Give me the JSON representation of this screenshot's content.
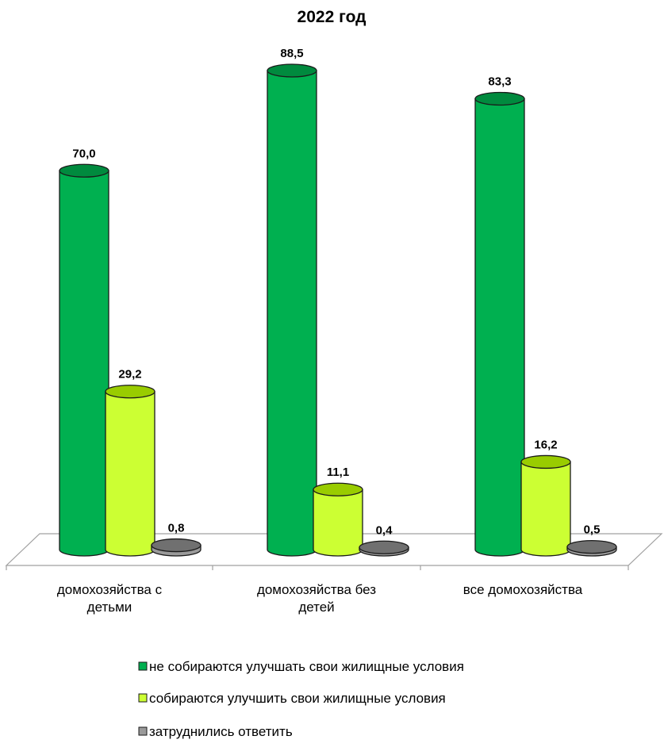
{
  "chart_data": {
    "type": "bar",
    "title": "2022 год",
    "categories": [
      [
        "домохозяйства с",
        "детьми"
      ],
      [
        "домохозяйства без",
        "детей"
      ],
      [
        "все домохозяйства"
      ]
    ],
    "series": [
      {
        "name": "не собираются  улучшать свои жилищные условия",
        "values": [
          70.0,
          88.5,
          83.3
        ],
        "labels": [
          "70,0",
          "88,5",
          "83,3"
        ],
        "color": "#00b050",
        "top_color": "#008a3e"
      },
      {
        "name": "собираются  улучшить свои жилищные условия",
        "values": [
          29.2,
          11.1,
          16.2
        ],
        "labels": [
          "29,2",
          "11,1",
          "16,2"
        ],
        "color": "#ccff33",
        "top_color": "#99cc00"
      },
      {
        "name": "затруднились ответить",
        "values": [
          0.8,
          0.4,
          0.5
        ],
        "labels": [
          "0,8",
          "0,4",
          "0,5"
        ],
        "color": "#9a9a9a",
        "top_color": "#707070"
      }
    ],
    "ylim": [
      0,
      100
    ],
    "grid": false,
    "legend_position": "bottom",
    "style": "3d-cylinder"
  }
}
